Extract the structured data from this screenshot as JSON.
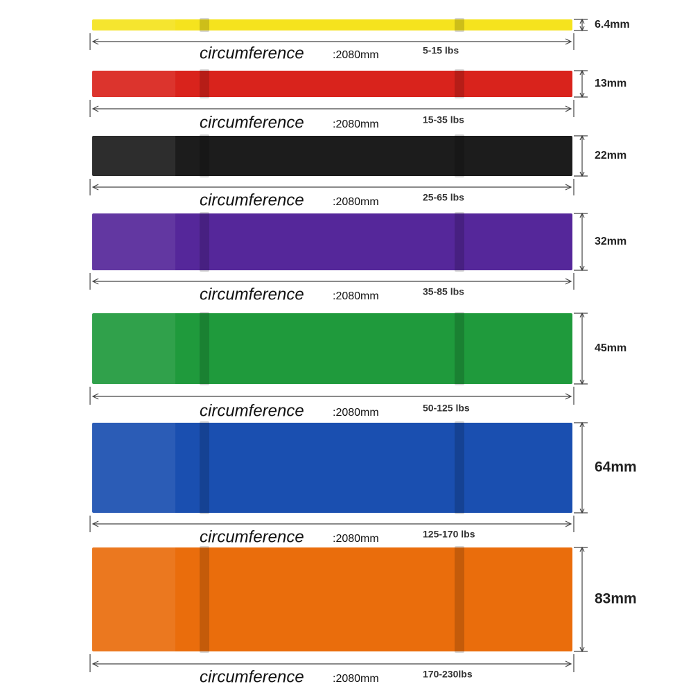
{
  "bands": [
    {
      "width": "6.4mm",
      "circumference_label": "circumference",
      "circumference_value": ":2080mm",
      "resistance": "5-15 lbs",
      "color": "#f5e31e"
    },
    {
      "width": "13mm",
      "circumference_label": "circumference",
      "circumference_value": ":2080mm",
      "resistance": "15-35 lbs",
      "color": "#d9231c"
    },
    {
      "width": "22mm",
      "circumference_label": "circumference",
      "circumference_value": ":2080mm",
      "resistance": "25-65 lbs",
      "color": "#1c1c1c"
    },
    {
      "width": "32mm",
      "circumference_label": "circumference",
      "circumference_value": ":2080mm",
      "resistance": "35-85 lbs",
      "color": "#55279a"
    },
    {
      "width": "45mm",
      "circumference_label": "circumference",
      "circumference_value": ":2080mm",
      "resistance": "50-125 lbs",
      "color": "#1f9a3c"
    },
    {
      "width": "64mm",
      "circumference_label": "circumference",
      "circumference_value": ":2080mm",
      "resistance": "125-170 lbs",
      "color": "#1a4fb0"
    },
    {
      "width": "83mm",
      "circumference_label": "circumference",
      "circumference_value": ":2080mm",
      "resistance": "170-230lbs",
      "color": "#ea6d0c"
    }
  ]
}
